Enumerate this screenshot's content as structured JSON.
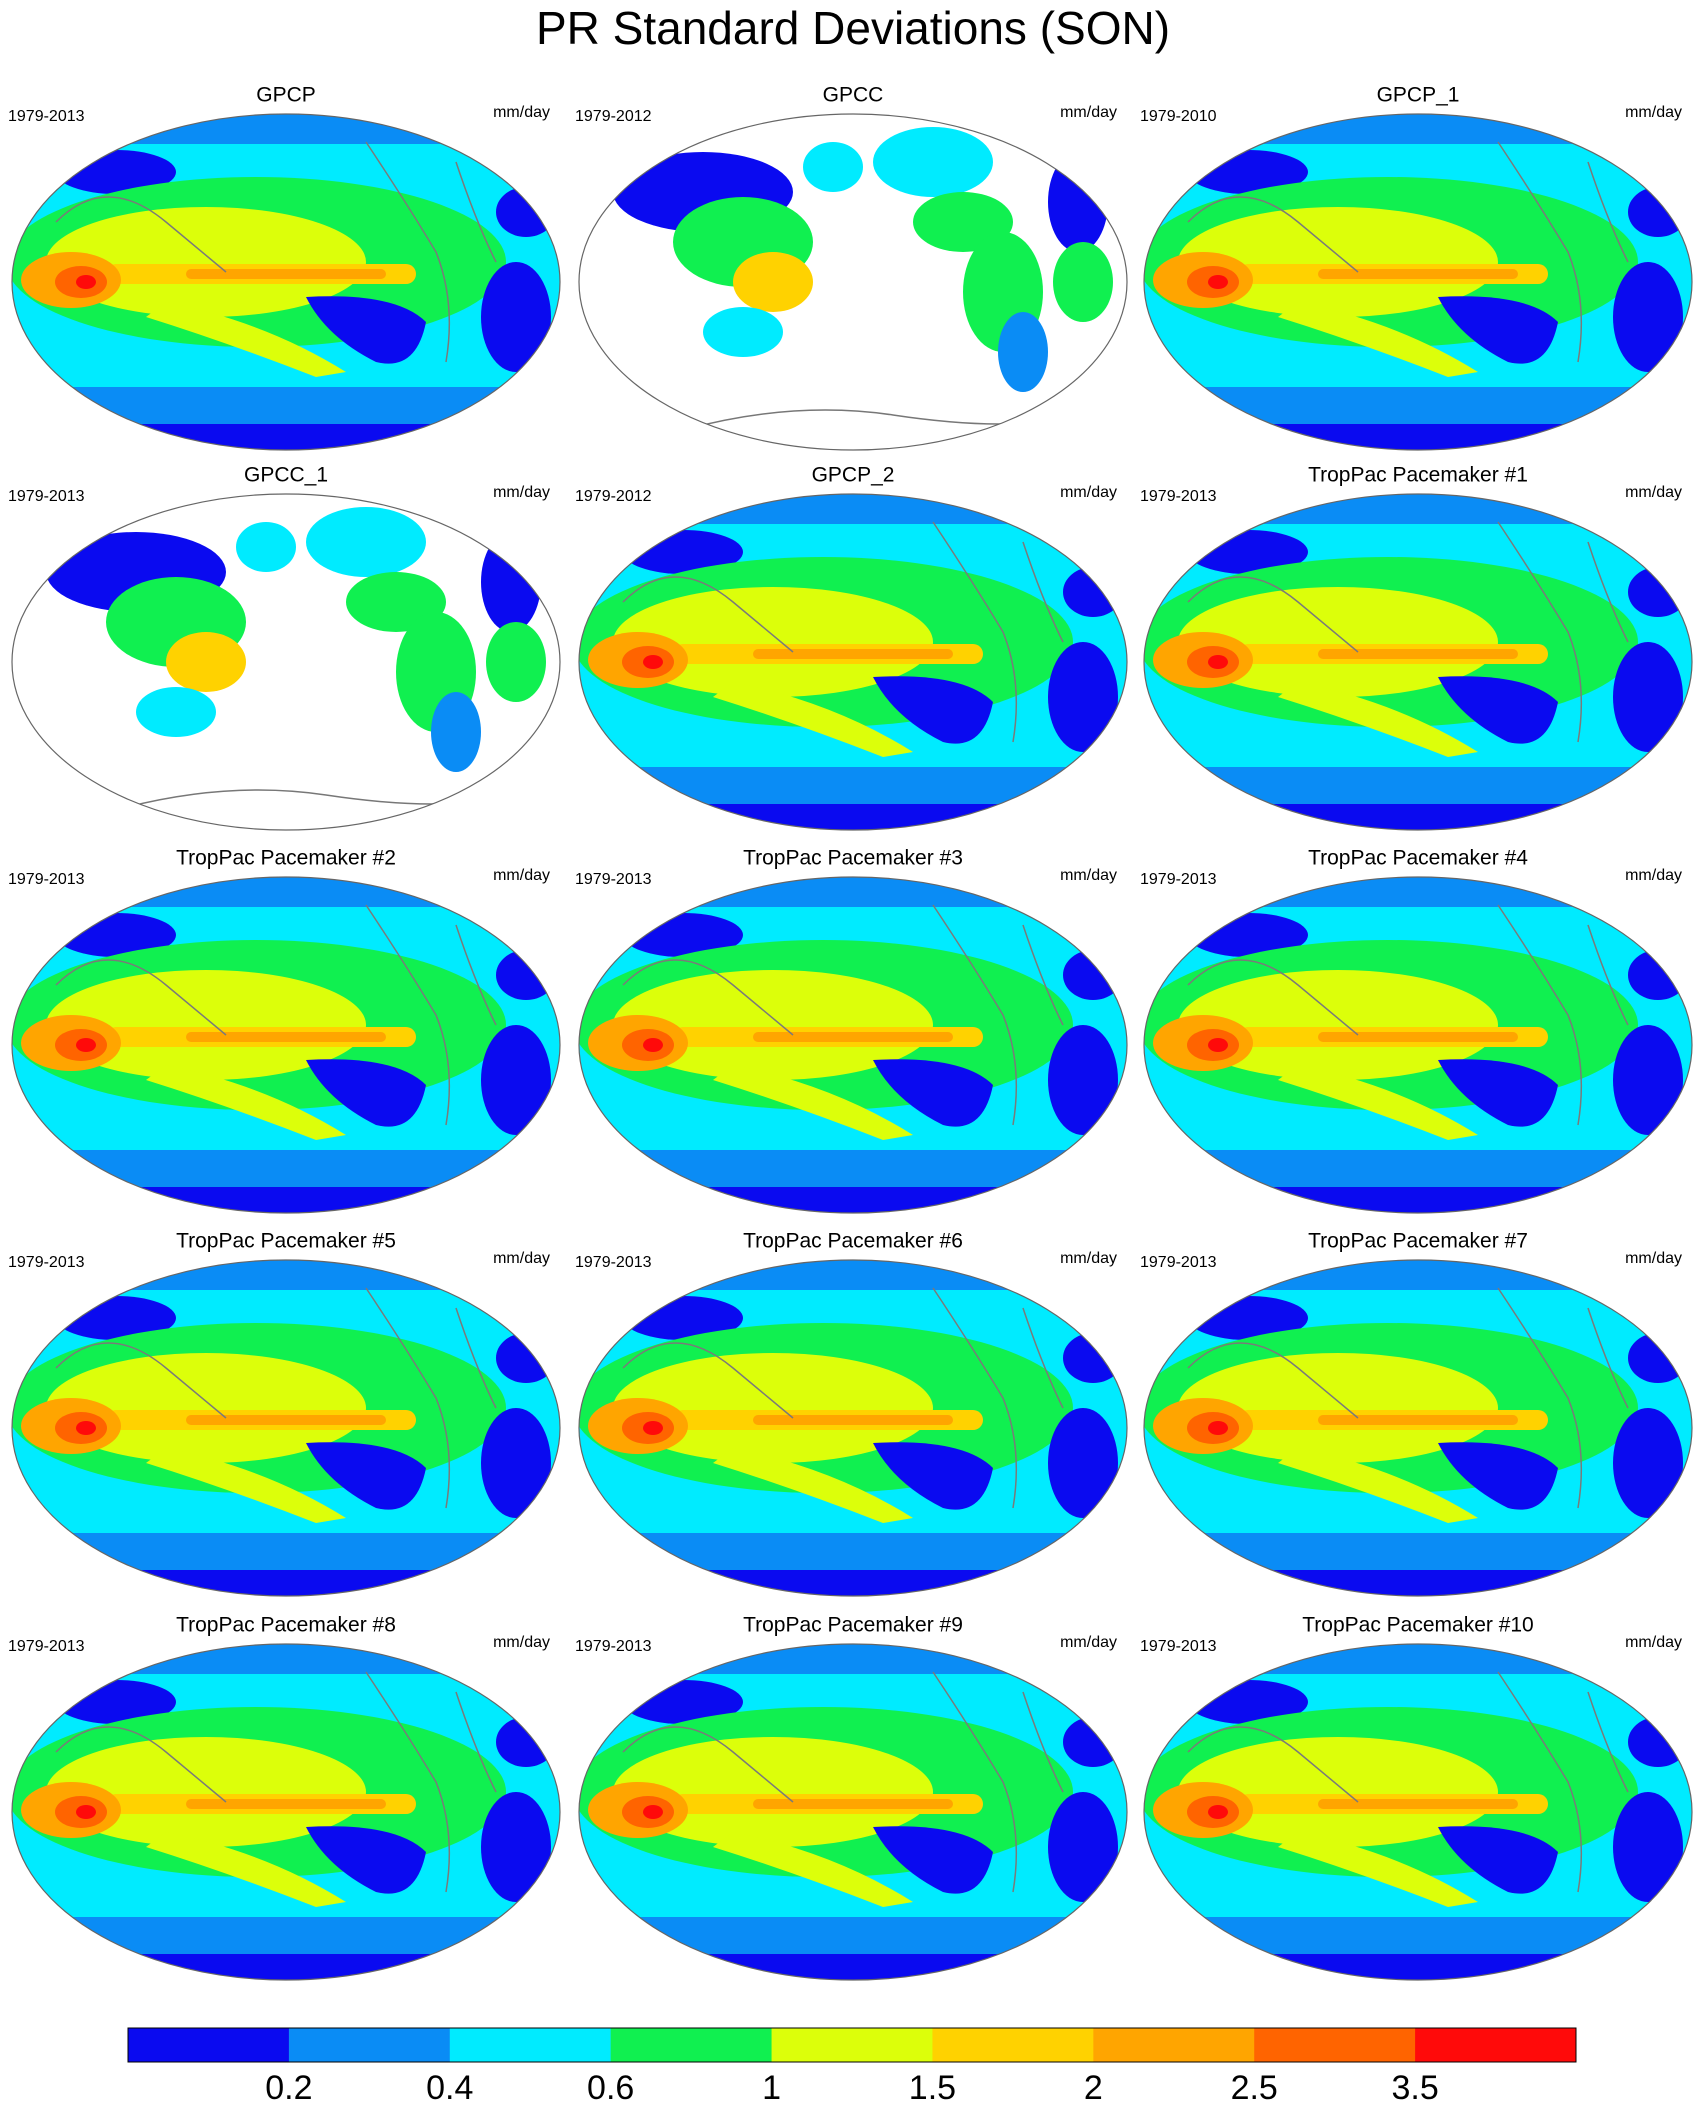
{
  "title": "PR Standard Deviations (SON)",
  "panels": [
    {
      "title": "GPCP",
      "period": "1979-2013",
      "units": "mm/day"
    },
    {
      "title": "GPCC",
      "period": "1979-2012",
      "units": "mm/day",
      "masked": true
    },
    {
      "title": "GPCP_1",
      "period": "1979-2010",
      "units": "mm/day"
    },
    {
      "title": "GPCC_1",
      "period": "1979-2013",
      "units": "mm/day",
      "masked": true
    },
    {
      "title": "GPCP_2",
      "period": "1979-2012",
      "units": "mm/day"
    },
    {
      "title": "TropPac Pacemaker #1",
      "period": "1979-2013",
      "units": "mm/day"
    },
    {
      "title": "TropPac Pacemaker #2",
      "period": "1979-2013",
      "units": "mm/day"
    },
    {
      "title": "TropPac Pacemaker #3",
      "period": "1979-2013",
      "units": "mm/day"
    },
    {
      "title": "TropPac Pacemaker #4",
      "period": "1979-2013",
      "units": "mm/day"
    },
    {
      "title": "TropPac Pacemaker #5",
      "period": "1979-2013",
      "units": "mm/day"
    },
    {
      "title": "TropPac Pacemaker #6",
      "period": "1979-2013",
      "units": "mm/day"
    },
    {
      "title": "TropPac Pacemaker #7",
      "period": "1979-2013",
      "units": "mm/day"
    },
    {
      "title": "TropPac Pacemaker #8",
      "period": "1979-2013",
      "units": "mm/day"
    },
    {
      "title": "TropPac Pacemaker #9",
      "period": "1979-2013",
      "units": "mm/day"
    },
    {
      "title": "TropPac Pacemaker #10",
      "period": "1979-2013",
      "units": "mm/day"
    }
  ],
  "colorbar": {
    "colors": [
      "#0a0af0",
      "#0a8cf5",
      "#00ebff",
      "#10f050",
      "#dcff0a",
      "#ffd200",
      "#ffa500",
      "#ff6400",
      "#ff0a0a"
    ],
    "labels": [
      0.2,
      0.4,
      0.6,
      1,
      1.5,
      2,
      2.5,
      3.5
    ]
  }
}
